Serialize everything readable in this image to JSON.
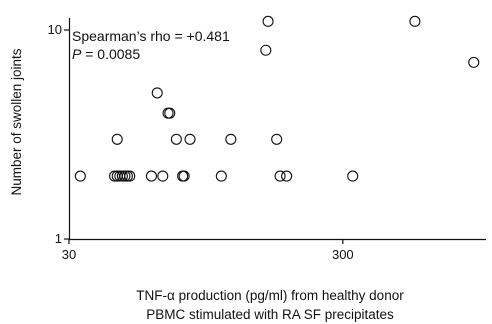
{
  "chart_data": {
    "type": "scatter",
    "xscale": "log",
    "yscale": "log",
    "xlim": [
      30,
      1000
    ],
    "ylim": [
      1,
      10
    ],
    "xticks": [
      30,
      300
    ],
    "yticks": [
      1,
      10
    ],
    "x_tick_labels": [
      "30",
      "300"
    ],
    "y_tick_labels": [
      "1",
      "10"
    ],
    "xlabel_line1": "TNF-α production (pg/ml) from healthy donor",
    "xlabel_line2": "PBMC stimulated with RA SF precipitates",
    "ylabel": "Number of swollen joints",
    "annotations": {
      "rho_text": "Spearman’s rho = +0.481",
      "p_label": "P",
      "p_text": " = 0.0085"
    },
    "grid": false,
    "marker": "open-circle",
    "points": [
      {
        "x": 33,
        "y": 2
      },
      {
        "x": 44,
        "y": 2
      },
      {
        "x": 45,
        "y": 2
      },
      {
        "x": 46,
        "y": 2
      },
      {
        "x": 47,
        "y": 2
      },
      {
        "x": 48,
        "y": 2
      },
      {
        "x": 49,
        "y": 2
      },
      {
        "x": 50,
        "y": 2
      },
      {
        "x": 45,
        "y": 3
      },
      {
        "x": 60,
        "y": 2
      },
      {
        "x": 66,
        "y": 2
      },
      {
        "x": 63,
        "y": 5
      },
      {
        "x": 69,
        "y": 4
      },
      {
        "x": 70,
        "y": 4
      },
      {
        "x": 74,
        "y": 3
      },
      {
        "x": 78,
        "y": 2
      },
      {
        "x": 79,
        "y": 2
      },
      {
        "x": 83,
        "y": 3
      },
      {
        "x": 108,
        "y": 2
      },
      {
        "x": 117,
        "y": 3
      },
      {
        "x": 157,
        "y": 8
      },
      {
        "x": 160,
        "y": 11
      },
      {
        "x": 172,
        "y": 3
      },
      {
        "x": 177,
        "y": 2
      },
      {
        "x": 187,
        "y": 2
      },
      {
        "x": 326,
        "y": 2
      },
      {
        "x": 550,
        "y": 11
      },
      {
        "x": 902,
        "y": 7
      }
    ]
  }
}
